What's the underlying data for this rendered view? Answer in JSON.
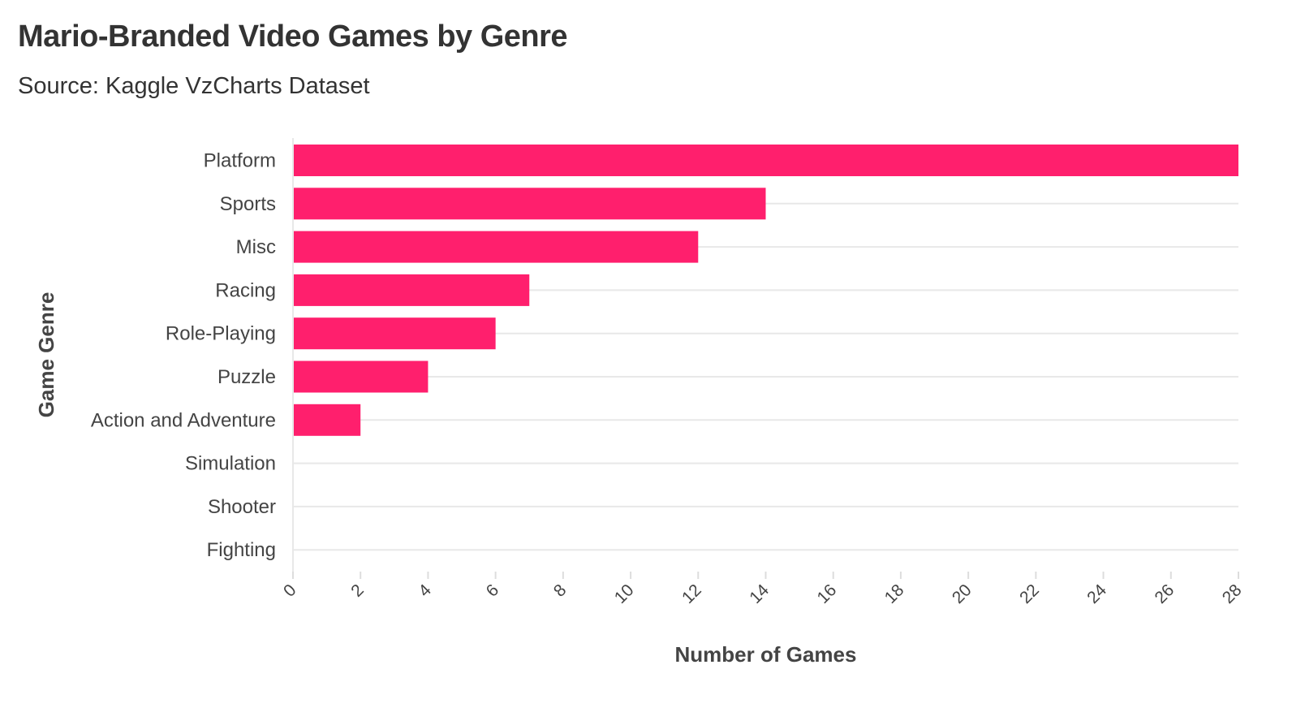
{
  "header": {
    "title": "Mario-Branded Video Games by Genre",
    "subtitle": "Source: Kaggle VzCharts Dataset"
  },
  "chart_data": {
    "type": "bar",
    "orientation": "horizontal",
    "title": "Mario-Branded Video Games by Genre",
    "subtitle": "Source: Kaggle VzCharts Dataset",
    "xlabel": "Number of Games",
    "ylabel": "Game Genre",
    "categories": [
      "Platform",
      "Sports",
      "Misc",
      "Racing",
      "Role-Playing",
      "Puzzle",
      "Action and Adventure",
      "Simulation",
      "Shooter",
      "Fighting"
    ],
    "values": [
      28,
      14,
      12,
      7,
      6,
      4,
      2,
      0,
      0,
      0
    ],
    "xlim": [
      0,
      28
    ],
    "xticks": [
      0,
      2,
      4,
      6,
      8,
      10,
      12,
      14,
      16,
      18,
      20,
      22,
      24,
      26,
      28
    ],
    "bar_color": "#ff1f6d",
    "grid_color": "#e8e8e8",
    "grid": true,
    "legend": false
  }
}
